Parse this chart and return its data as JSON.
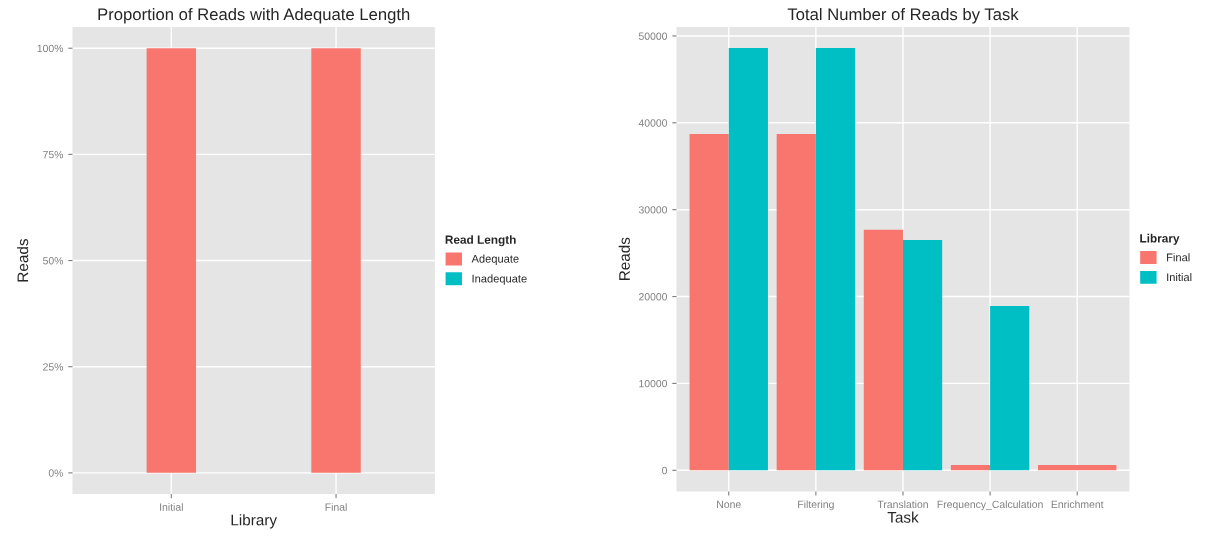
{
  "chart_data": [
    {
      "type": "bar",
      "title": "Proportion of Reads with Adequate Length",
      "xlabel": "Library",
      "ylabel": "Reads",
      "legend_title": "Read Length",
      "categories": [
        "Initial",
        "Final"
      ],
      "stacked": true,
      "series": [
        {
          "name": "Adequate",
          "color": "#f8766d",
          "values": [
            100,
            100
          ]
        },
        {
          "name": "Inadequate",
          "color": "#00bfc4",
          "values": [
            0,
            0
          ]
        }
      ],
      "ylim": [
        -5,
        105
      ],
      "yticks": [
        {
          "value": 0,
          "label": "0%"
        },
        {
          "value": 25,
          "label": "25%"
        },
        {
          "value": 50,
          "label": "50%"
        },
        {
          "value": 75,
          "label": "75%"
        },
        {
          "value": 100,
          "label": "100%"
        }
      ],
      "grid": true,
      "legend": "right"
    },
    {
      "type": "bar",
      "title": "Total Number of Reads by Task",
      "xlabel": "Task",
      "ylabel": "Reads",
      "legend_title": "Library",
      "categories": [
        "None",
        "Filtering",
        "Translation",
        "Frequency_Calculation",
        "Enrichment"
      ],
      "series": [
        {
          "name": "Final",
          "color": "#f8766d",
          "values": [
            38700,
            38700,
            27700,
            600,
            600
          ]
        },
        {
          "name": "Initial",
          "color": "#00bfc4",
          "values": [
            48600,
            48600,
            26500,
            18900,
            null
          ]
        }
      ],
      "ylim": [
        -2430,
        51030
      ],
      "yticks": [
        0,
        10000,
        20000,
        30000,
        40000,
        50000
      ],
      "grid": true,
      "legend": "right"
    }
  ]
}
